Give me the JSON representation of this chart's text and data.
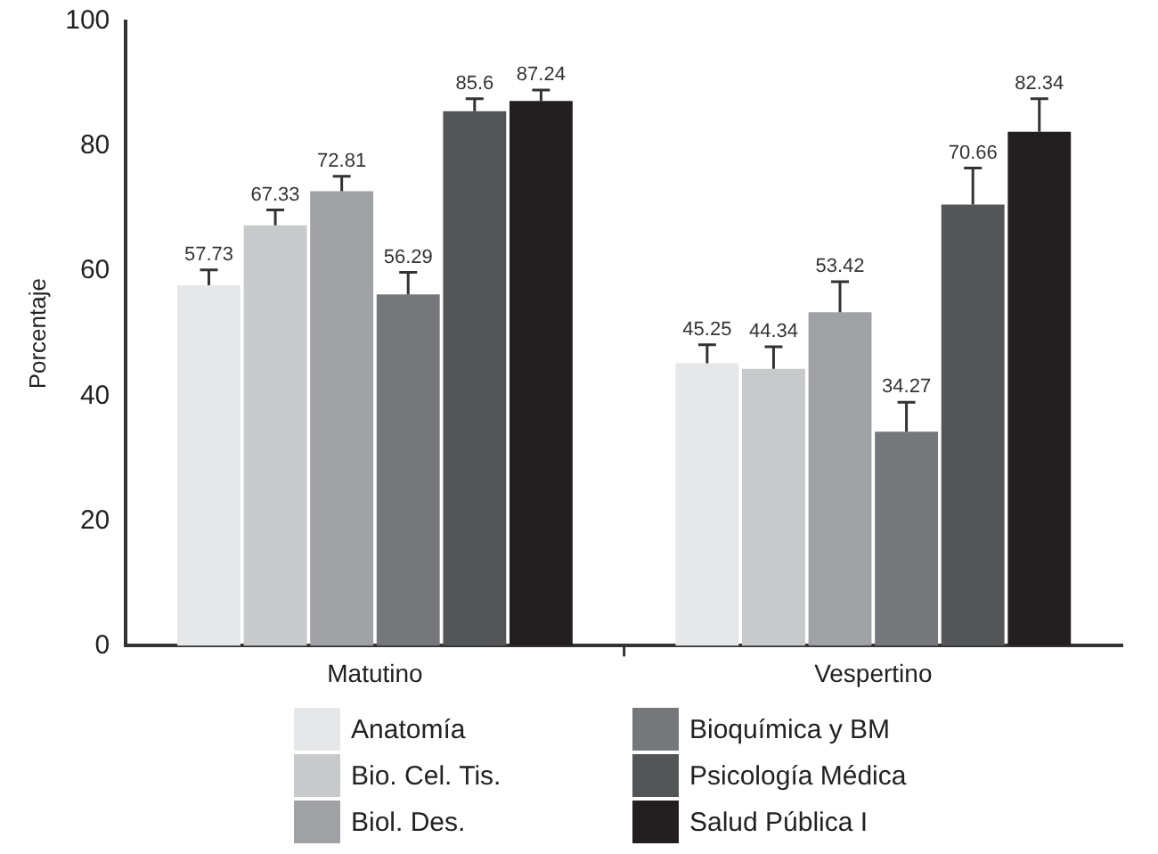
{
  "chart_data": {
    "type": "bar",
    "ylabel": "Porcentaje",
    "categories": [
      "Matutino",
      "Vespertino"
    ],
    "series": [
      {
        "name": "Anatomía",
        "color": "#e6e7e8",
        "values": [
          57.73,
          45.25
        ],
        "errors": [
          [
            57.73,
            60.2
          ],
          [
            45.25,
            48.2
          ]
        ]
      },
      {
        "name": "Bio. Cel. Tis.",
        "color": "#c8c9cb",
        "values": [
          67.33,
          44.34
        ],
        "errors": [
          [
            67.33,
            69.8
          ],
          [
            44.34,
            47.9
          ]
        ]
      },
      {
        "name": "Biol. Des.",
        "color": "#a0a1a4",
        "values": [
          72.81,
          53.42
        ],
        "errors": [
          [
            72.81,
            75.2
          ],
          [
            53.42,
            58.3
          ]
        ]
      },
      {
        "name": "Bioquímica y BM",
        "color": "#76777a",
        "values": [
          56.29,
          34.27
        ],
        "errors": [
          [
            56.29,
            59.8
          ],
          [
            34.27,
            39
          ]
        ]
      },
      {
        "name": "Psicología Médica",
        "color": "#545557",
        "values": [
          85.6,
          70.66
        ],
        "errors": [
          [
            85.6,
            87.6
          ],
          [
            70.66,
            76.5
          ]
        ]
      },
      {
        "name": "Salud Pública I",
        "color": "#231f20",
        "values": [
          87.24,
          82.34
        ],
        "errors": [
          [
            87.24,
            89
          ],
          [
            82.34,
            87.6
          ]
        ]
      }
    ],
    "ylim": [
      0,
      100
    ],
    "yticks": [
      0,
      20,
      40,
      60,
      80,
      100
    ],
    "grid": false,
    "legend": "bottom",
    "data_labels": true
  }
}
